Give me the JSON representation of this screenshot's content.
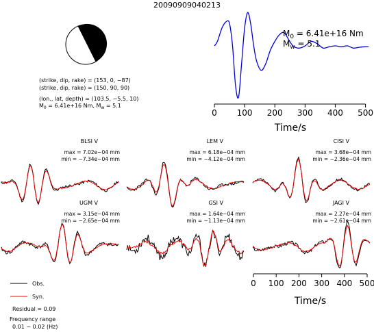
{
  "title": "20090909040213",
  "beachball": {
    "sdr1": "(strike, dip, rake) = (153, 0, −87)",
    "sdr2": "(strike, dip, rake) = (150, 90, 90)",
    "loc": "(lon., lat, depth) = (103.5, −5.5, 10)",
    "moment": "M₀ = 6.41e+16 Nm, Mᵥᵥ = 5.1",
    "moment_main": "M",
    "moment_rest": " = 6.41e+16 Nm, M",
    "moment_tail": " = 5.1"
  },
  "stf": {
    "m0_label": "M",
    "m0_sub": "0",
    "m0_value": " = 6.41e+16 Nm",
    "mw_label": "M",
    "mw_sub": "w",
    "mw_value": " = 5.1",
    "xlabel": "Time/s",
    "xticks": [
      "0",
      "100",
      "200",
      "300",
      "400",
      "500"
    ]
  },
  "stations": [
    {
      "name": "BLSI V",
      "max": "max = 7.02e−04 mm",
      "min": "min = −7.34e−04 mm"
    },
    {
      "name": "LEM V",
      "max": "max = 6.18e−04 mm",
      "min": "min = −4.12e−04 mm"
    },
    {
      "name": "CISI V",
      "max": "max = 3.68e−04 mm",
      "min": "min = −2.36e−04 mm"
    },
    {
      "name": "UGM V",
      "max": "max = 3.15e−04 mm",
      "min": "min = −2.65e−04 mm"
    },
    {
      "name": "GSI V",
      "max": "max = 1.64e−04 mm",
      "min": "min = −1.13e−04 mm"
    },
    {
      "name": "JAGI V",
      "max": "max = 2.27e−04 mm",
      "min": "min = −2.61e−04 mm"
    }
  ],
  "bottom_axis": {
    "xlabel": "Time/s",
    "xticks": [
      "0",
      "100",
      "200",
      "300",
      "400",
      "500"
    ]
  },
  "legend": {
    "obs": "Obs.",
    "syn": "Syn.",
    "residual": "Residual = 0.09",
    "freq_title": "Frequency range",
    "freq_value": "0.01 − 0.02 (Hz)"
  },
  "colors": {
    "observed": "#000000",
    "synthetic": "#ee0000",
    "stf": "#0000dd"
  },
  "chart_data": {
    "type": "line",
    "title": "20090909040213",
    "xlabel": "Time/s",
    "xlim": [
      0,
      510
    ],
    "series": [
      {
        "name": "source time function",
        "x": [
          0,
          10,
          25,
          40,
          50,
          60,
          70,
          80,
          90,
          100,
          110,
          120,
          130,
          140,
          155,
          170,
          185,
          200,
          215,
          230,
          245,
          260,
          280,
          300,
          320,
          340,
          360,
          380,
          400,
          420,
          440,
          460,
          480,
          500,
          510
        ],
        "y": [
          0.2,
          0.3,
          0.6,
          0.75,
          0.7,
          0.2,
          -0.7,
          -0.95,
          -0.2,
          0.6,
          0.95,
          0.7,
          0.2,
          -0.15,
          -0.35,
          -0.2,
          0.1,
          0.3,
          0.45,
          0.5,
          0.35,
          0.2,
          0.15,
          0.2,
          0.3,
          0.25,
          0.15,
          0.18,
          0.2,
          0.18,
          0.2,
          0.15,
          0.17,
          0.18,
          0.18
        ]
      }
    ]
  }
}
